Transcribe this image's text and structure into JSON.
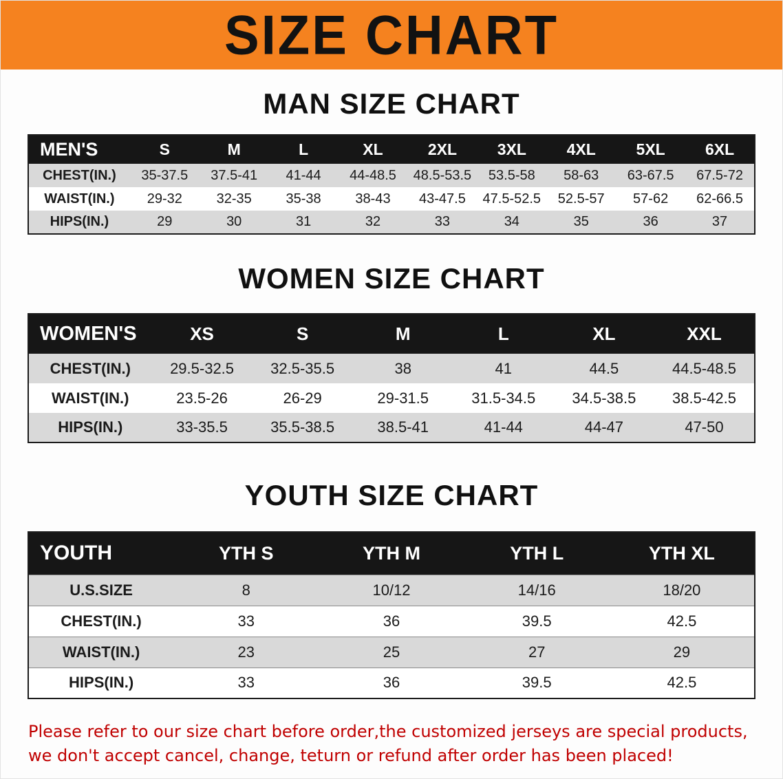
{
  "banner": {
    "title": "SIZE CHART"
  },
  "men": {
    "heading": "MAN SIZE CHART",
    "table": {
      "header": [
        "MEN'S",
        "S",
        "M",
        "L",
        "XL",
        "2XL",
        "3XL",
        "4XL",
        "5XL",
        "6XL"
      ],
      "rows": [
        [
          "CHEST(IN.)",
          "35-37.5",
          "37.5-41",
          "41-44",
          "44-48.5",
          "48.5-53.5",
          "53.5-58",
          "58-63",
          "63-67.5",
          "67.5-72"
        ],
        [
          "WAIST(IN.)",
          "29-32",
          "32-35",
          "35-38",
          "38-43",
          "43-47.5",
          "47.5-52.5",
          "52.5-57",
          "57-62",
          "62-66.5"
        ],
        [
          "HIPS(IN.)",
          "29",
          "30",
          "31",
          "32",
          "33",
          "34",
          "35",
          "36",
          "37"
        ]
      ]
    }
  },
  "women": {
    "heading": "WOMEN SIZE CHART",
    "table": {
      "header": [
        "WOMEN'S",
        "XS",
        "S",
        "M",
        "L",
        "XL",
        "XXL"
      ],
      "rows": [
        [
          "CHEST(IN.)",
          "29.5-32.5",
          "32.5-35.5",
          "38",
          "41",
          "44.5",
          "44.5-48.5"
        ],
        [
          "WAIST(IN.)",
          "23.5-26",
          "26-29",
          "29-31.5",
          "31.5-34.5",
          "34.5-38.5",
          "38.5-42.5"
        ],
        [
          "HIPS(IN.)",
          "33-35.5",
          "35.5-38.5",
          "38.5-41",
          "41-44",
          "44-47",
          "47-50"
        ]
      ]
    }
  },
  "youth": {
    "heading": "YOUTH SIZE CHART",
    "table": {
      "header": [
        "YOUTH",
        "YTH S",
        "YTH M",
        "YTH L",
        "YTH XL"
      ],
      "rows": [
        [
          "U.S.SIZE",
          "8",
          "10/12",
          "14/16",
          "18/20"
        ],
        [
          "CHEST(IN.)",
          "33",
          "36",
          "39.5",
          "42.5"
        ],
        [
          "WAIST(IN.)",
          "23",
          "25",
          "27",
          "29"
        ],
        [
          "HIPS(IN.)",
          "33",
          "36",
          "39.5",
          "42.5"
        ]
      ]
    }
  },
  "footer": {
    "line1": "Please refer to our size chart before order,the customized jerseys are special products,",
    "line2": "we don't accept cancel, change, teturn or refund after order has been placed!"
  },
  "colors": {
    "banner_bg": "#F5821F",
    "title_text": "#121212",
    "table_header_bg": "#161616",
    "table_header_text": "#FFFFFF",
    "row_alt_bg": "#D9D9D9",
    "disclaimer_text": "#C00000"
  }
}
